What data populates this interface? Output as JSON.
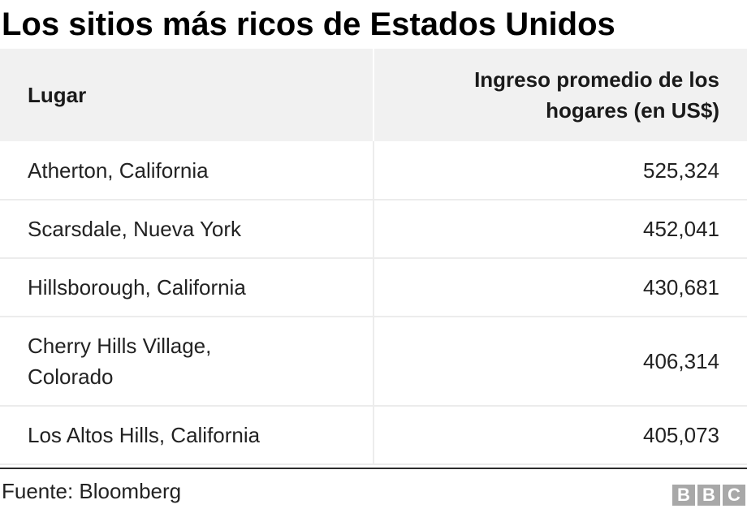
{
  "chart_data": {
    "type": "table",
    "title": "Los sitios más ricos de Estados Unidos",
    "columns": [
      "Lugar",
      "Ingreso promedio de los hogares (en US$)"
    ],
    "rows": [
      {
        "place": "Atherton, California",
        "income": "525,324"
      },
      {
        "place": "Scarsdale, Nueva York",
        "income": "452,041"
      },
      {
        "place": "Hillsborough, California",
        "income": "430,681"
      },
      {
        "place": "Cherry Hills Village, Colorado",
        "income": "406,314"
      },
      {
        "place": "Los Altos Hills, California",
        "income": "405,073"
      }
    ],
    "values": [
      525324,
      452041,
      430681,
      406314,
      405073
    ]
  },
  "source": "Fuente: Bloomberg",
  "logo": {
    "letters": [
      "B",
      "B",
      "C"
    ],
    "color": "#a8a8a8"
  }
}
